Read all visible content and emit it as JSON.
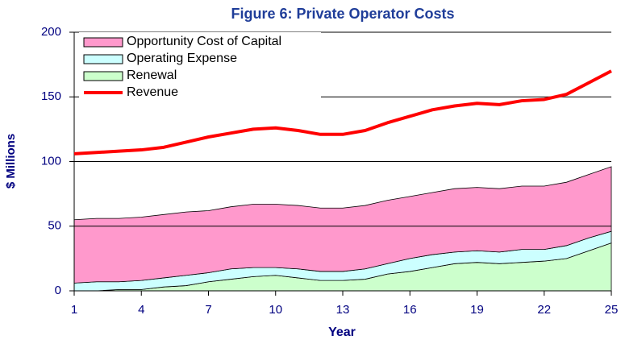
{
  "chart_data": {
    "type": "stacked-area-line",
    "title": "Figure 6: Private Operator Costs",
    "xlabel": "Year",
    "ylabel": "$ Millions",
    "x": [
      1,
      2,
      3,
      4,
      5,
      6,
      7,
      8,
      9,
      10,
      11,
      12,
      13,
      14,
      15,
      16,
      17,
      18,
      19,
      20,
      21,
      22,
      23,
      24,
      25
    ],
    "series": [
      {
        "name": "Opportunity Cost of Capital",
        "kind": "area",
        "color": "#ff99cc",
        "values": [
          49,
          49,
          49,
          49,
          49,
          49,
          48,
          48,
          49,
          49,
          49,
          49,
          49,
          49,
          49,
          48,
          48,
          49,
          49,
          49,
          49,
          49,
          49,
          49,
          50
        ]
      },
      {
        "name": "Operating Expense",
        "kind": "area",
        "color": "#ccffff",
        "values": [
          6,
          7,
          6,
          7,
          7,
          8,
          7,
          8,
          7,
          6,
          7,
          7,
          7,
          8,
          8,
          10,
          10,
          9,
          9,
          9,
          10,
          9,
          10,
          10,
          9
        ]
      },
      {
        "name": "Renewal",
        "kind": "area",
        "color": "#ccffcc",
        "values": [
          0,
          0,
          1,
          1,
          3,
          4,
          7,
          9,
          11,
          12,
          10,
          8,
          8,
          9,
          13,
          15,
          18,
          21,
          22,
          21,
          22,
          23,
          25,
          31,
          37
        ]
      },
      {
        "name": "Revenue",
        "kind": "line",
        "color": "#ff0000",
        "values": [
          106,
          107,
          108,
          109,
          111,
          115,
          119,
          122,
          125,
          126,
          124,
          121,
          121,
          124,
          130,
          135,
          140,
          143,
          145,
          144,
          147,
          148,
          152,
          161,
          170
        ]
      }
    ],
    "xlim": [
      1,
      25
    ],
    "xticks": [
      1,
      4,
      7,
      10,
      13,
      16,
      19,
      22,
      25
    ],
    "ylim": [
      0,
      200
    ],
    "yticks": [
      0,
      50,
      100,
      150,
      200
    ],
    "grid": true,
    "legend": "upper left"
  }
}
